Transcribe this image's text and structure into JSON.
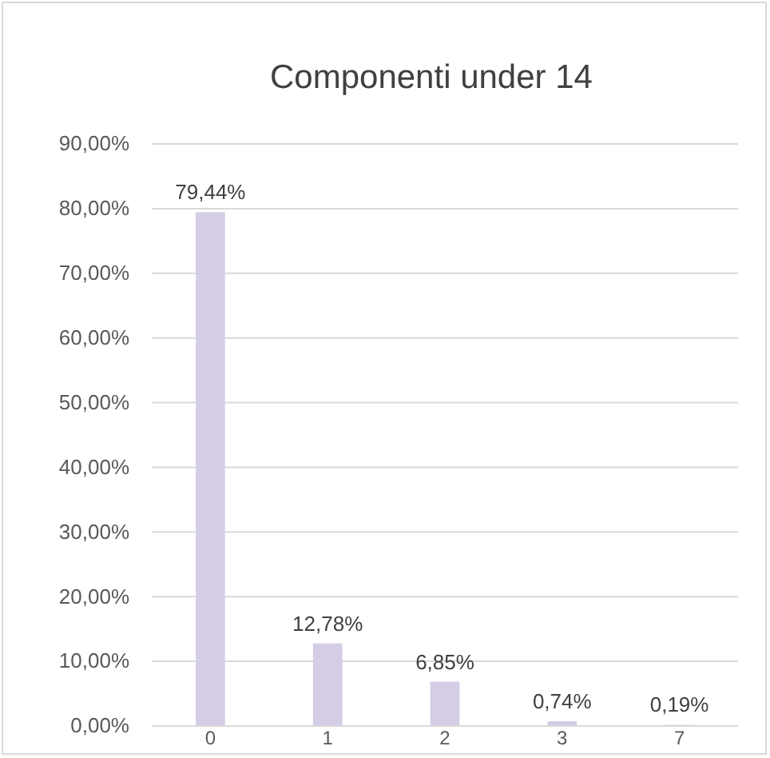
{
  "chart_data": {
    "type": "bar",
    "title": "Componenti under 14",
    "categories": [
      "0",
      "1",
      "2",
      "3",
      "7"
    ],
    "values": [
      79.44,
      12.78,
      6.85,
      0.74,
      0.19
    ],
    "value_labels": [
      "79,44%",
      "12,78%",
      "6,85%",
      "0,74%",
      "0,19%"
    ],
    "color": "#d5cde6",
    "ylim": [
      0,
      90
    ],
    "yticks": [
      {
        "value": 0,
        "label": "0,00%"
      },
      {
        "value": 10,
        "label": "10,00%"
      },
      {
        "value": 20,
        "label": "20,00%"
      },
      {
        "value": 30,
        "label": "30,00%"
      },
      {
        "value": 40,
        "label": "40,00%"
      },
      {
        "value": 50,
        "label": "50,00%"
      },
      {
        "value": 60,
        "label": "60,00%"
      },
      {
        "value": 70,
        "label": "70,00%"
      },
      {
        "value": 80,
        "label": "80,00%"
      },
      {
        "value": 90,
        "label": "90,00%"
      }
    ],
    "grid": "y"
  }
}
